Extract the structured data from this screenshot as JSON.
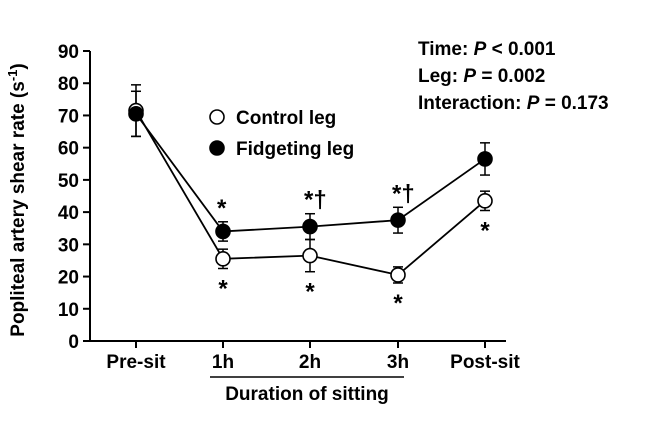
{
  "chart_data": {
    "type": "line",
    "title": "",
    "xlabel": "Duration of sitting",
    "ylabel": "Popliteal artery shear rate (s",
    "ylabel_superscript": "-1",
    "ylabel_close": ")",
    "ylim": [
      0,
      90
    ],
    "yticks": [
      0,
      10,
      20,
      30,
      40,
      50,
      60,
      70,
      80,
      90
    ],
    "categories": [
      "Pre-sit",
      "1h",
      "2h",
      "3h",
      "Post-sit"
    ],
    "series": [
      {
        "name": "Control leg",
        "marker": "open-circle",
        "color": "#000000",
        "values": [
          71.5,
          25.5,
          26.5,
          20.5,
          43.5
        ],
        "error": [
          8,
          3,
          5,
          2.5,
          3
        ],
        "annotations_below": [
          "",
          "*",
          "*",
          "*",
          "*"
        ]
      },
      {
        "name": "Fidgeting leg",
        "marker": "filled-circle",
        "color": "#000000",
        "values": [
          70.5,
          34,
          35.5,
          37.5,
          56.5
        ],
        "error": [
          7,
          3,
          4,
          4,
          5
        ],
        "annotations_above": [
          "",
          "*",
          "*†",
          "*†",
          ""
        ]
      }
    ],
    "legend": {
      "position": "upper-center",
      "entries": [
        "Control leg",
        "Fidgeting leg"
      ]
    },
    "stats": [
      {
        "label": "Time: ",
        "p_symbol": "P",
        "op": " < ",
        "value": "0.001"
      },
      {
        "label": "Leg: ",
        "p_symbol": "P",
        "op": " = ",
        "value": "0.002"
      },
      {
        "label": "Interaction: ",
        "p_symbol": "P",
        "op": " = ",
        "value": "0.173"
      }
    ]
  }
}
